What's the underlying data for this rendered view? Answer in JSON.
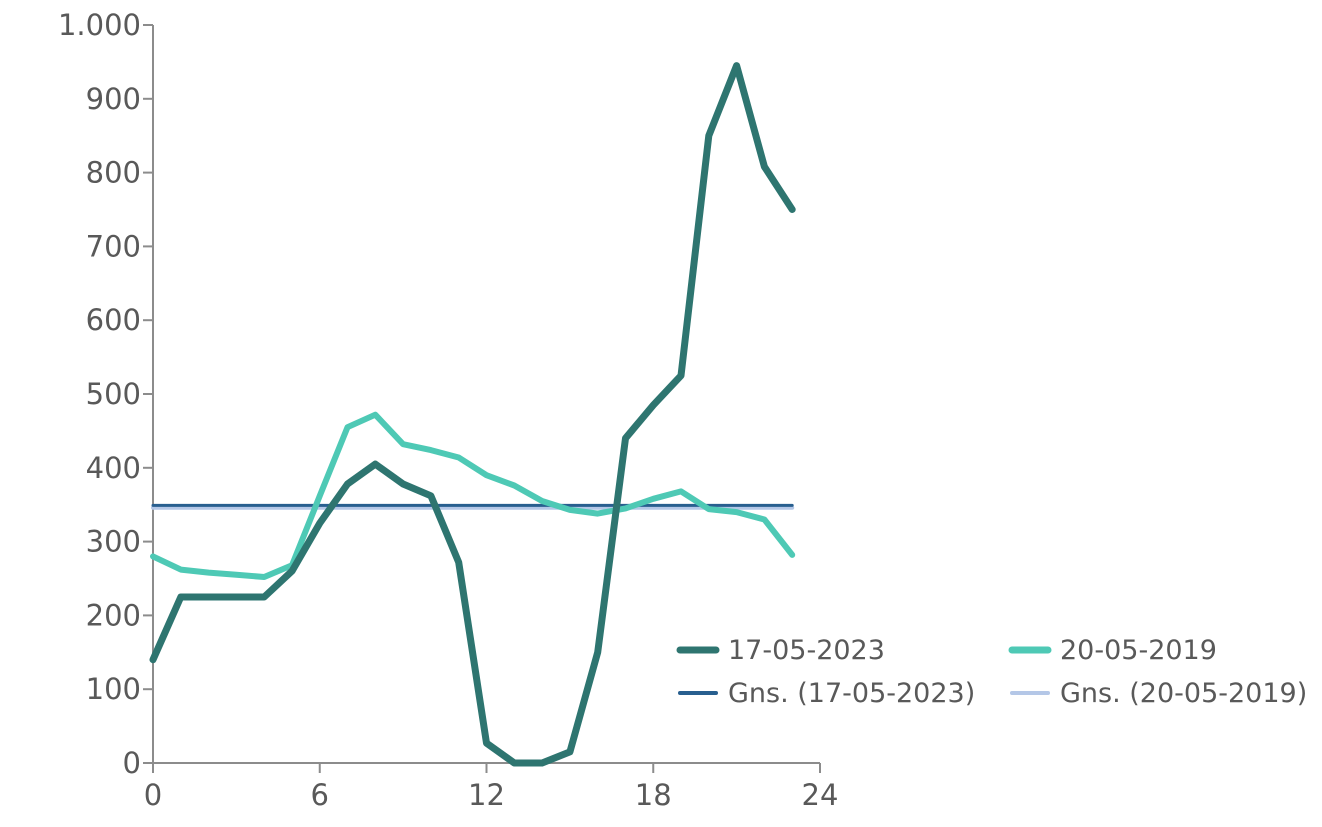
{
  "chart_data": {
    "type": "line",
    "title": "",
    "xlabel": "",
    "ylabel": "",
    "xlim": [
      0,
      24
    ],
    "ylim": [
      0,
      1000
    ],
    "x_ticks": [
      0,
      6,
      12,
      18,
      24
    ],
    "x_tick_labels": [
      "0",
      "6",
      "12",
      "18",
      "24"
    ],
    "y_ticks": [
      0,
      100,
      200,
      300,
      400,
      500,
      600,
      700,
      800,
      900,
      1000
    ],
    "y_tick_labels": [
      "0",
      "100",
      "200",
      "300",
      "400",
      "500",
      "600",
      "700",
      "800",
      "900",
      "1.000"
    ],
    "grid": false,
    "legend_position": "bottom-right",
    "x": [
      0,
      1,
      2,
      3,
      4,
      5,
      6,
      7,
      8,
      9,
      10,
      11,
      12,
      13,
      14,
      15,
      16,
      17,
      18,
      19,
      20,
      21,
      22,
      23
    ],
    "series": [
      {
        "name": "17-05-2023",
        "color": "#2e7570",
        "values": [
          140,
          225,
          225,
          225,
          225,
          260,
          325,
          378,
          405,
          378,
          362,
          272,
          27,
          0,
          0,
          15,
          150,
          440,
          485,
          525,
          850,
          945,
          808,
          750
        ]
      },
      {
        "name": "20-05-2019",
        "color": "#4ec9b5",
        "values": [
          280,
          262,
          258,
          255,
          252,
          268,
          362,
          455,
          472,
          432,
          424,
          414,
          390,
          376,
          355,
          343,
          338,
          345,
          358,
          368,
          344,
          340,
          330,
          282
        ]
      },
      {
        "name": "Gns. (17-05-2023)",
        "color": "#285f8f",
        "values": [
          349,
          349,
          349,
          349,
          349,
          349,
          349,
          349,
          349,
          349,
          349,
          349,
          349,
          349,
          349,
          349,
          349,
          349,
          349,
          349,
          349,
          349,
          349,
          349
        ]
      },
      {
        "name": "Gns. (20-05-2019)",
        "color": "#b4c7e7",
        "values": [
          346,
          346,
          346,
          346,
          346,
          346,
          346,
          346,
          346,
          346,
          346,
          346,
          346,
          346,
          346,
          346,
          346,
          346,
          346,
          346,
          346,
          346,
          346,
          346
        ]
      }
    ]
  }
}
